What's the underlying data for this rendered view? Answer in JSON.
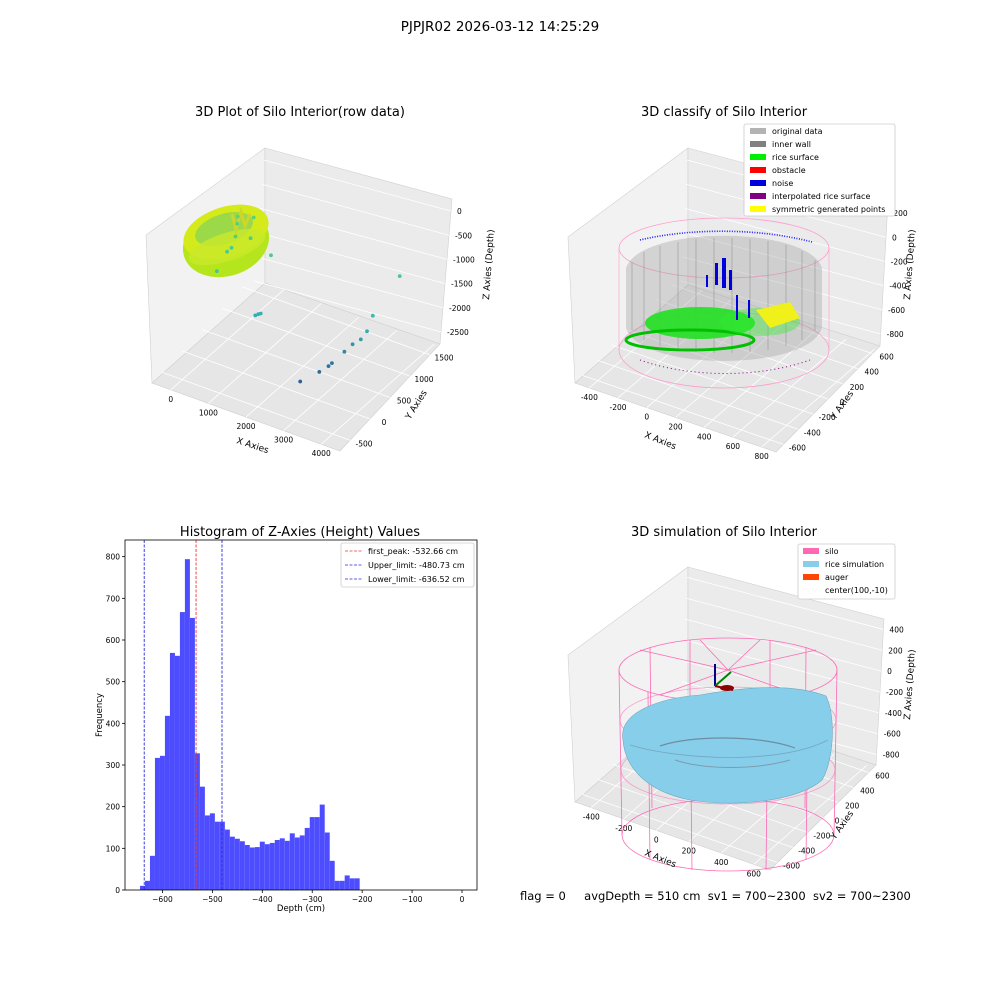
{
  "suptitle": "PJPJR02 2026-03-12 14:25:29",
  "footer": {
    "flag": "flag = 0",
    "avgdepth": "avgDepth = 510 cm",
    "sv1": "sv1 = 700~2300",
    "sv2": "sv2 = 700~2300"
  },
  "colors": {
    "hist_bar": "#4d4dff",
    "first_peak": "#e83a3a",
    "limits": "#2b2bd6",
    "silo": "#ff69b4",
    "rice_simulation": "#87ceeb",
    "auger": "#ff4500",
    "original_data": "#b3b3b3",
    "inner_wall": "#808080",
    "rice_surface": "#00ee00",
    "obstacle": "#ff0000",
    "noise": "#0000dd",
    "interpolated": "#800080",
    "symmetric": "#ffff00"
  },
  "chart_data": [
    {
      "type": "scatter",
      "subtype": "3d",
      "title": "3D Plot of Silo Interior(row data)",
      "xlabel": "X Axies",
      "ylabel": "Y Axies",
      "zlabel": "Z Axies (Depth)",
      "xticks": [
        "0",
        "1000",
        "2000",
        "3000",
        "4000"
      ],
      "yticks": [
        "-500",
        "0",
        "500",
        "1000",
        "1500"
      ],
      "zticks": [
        "0",
        "-500",
        "-1000",
        "-1500",
        "-2000",
        "-2500"
      ],
      "xlim": [
        -500,
        4200
      ],
      "ylim": [
        -700,
        1600
      ],
      "zlim": [
        -2900,
        100
      ],
      "outlier_points": [
        {
          "x": 450,
          "y": 380,
          "z": -200
        },
        {
          "x": 700,
          "y": 500,
          "z": -250
        },
        {
          "x": 380,
          "y": 420,
          "z": -400
        },
        {
          "x": 350,
          "y": 400,
          "z": -650
        },
        {
          "x": 600,
          "y": 500,
          "z": -700
        },
        {
          "x": 1100,
          "y": 500,
          "z": -900
        },
        {
          "x": 250,
          "y": 300,
          "z": -900
        },
        {
          "x": 300,
          "y": 350,
          "z": -850
        },
        {
          "x": 100,
          "y": 200,
          "z": -1250
        },
        {
          "x": 900,
          "y": 300,
          "z": -2000
        },
        {
          "x": 950,
          "y": 320,
          "z": -1980
        },
        {
          "x": 1000,
          "y": 330,
          "z": -1960
        },
        {
          "x": 3700,
          "y": 1000,
          "z": -1000
        },
        {
          "x": 3300,
          "y": 750,
          "z": -1700
        },
        {
          "x": 3200,
          "y": 700,
          "z": -2000
        },
        {
          "x": 3100,
          "y": 650,
          "z": -2150
        },
        {
          "x": 2950,
          "y": 600,
          "z": -2250
        },
        {
          "x": 2800,
          "y": 550,
          "z": -2400
        },
        {
          "x": 2600,
          "y": 450,
          "z": -2600
        },
        {
          "x": 2550,
          "y": 420,
          "z": -2650
        },
        {
          "x": 2400,
          "y": 350,
          "z": -2750
        },
        {
          "x": 2100,
          "y": 200,
          "z": -2900
        }
      ]
    },
    {
      "type": "scatter",
      "subtype": "3d",
      "title": "3D classify of Silo Interior",
      "xlabel": "X Axies",
      "ylabel": "Y Axies",
      "zlabel": "Z Axies (Depth)",
      "xticks": [
        "-400",
        "-200",
        "0",
        "200",
        "400",
        "600",
        "800"
      ],
      "yticks": [
        "-600",
        "-400",
        "-200",
        "0",
        "200",
        "400",
        "600"
      ],
      "zticks": [
        "200",
        "0",
        "-200",
        "-400",
        "-600",
        "-800"
      ],
      "legend": [
        "original data",
        "inner wall",
        "rice surface",
        "obstacle",
        "noise",
        "interpolated rice surface",
        "symmetric generated points"
      ],
      "legend_position": "upper right"
    },
    {
      "type": "bar",
      "title": "Histogram of Z-Axies (Height) Values",
      "xlabel": "Depth (cm)",
      "ylabel": "Frequency",
      "xlim": [
        -675,
        30
      ],
      "ylim": [
        0,
        840
      ],
      "xticks": [
        -600,
        -500,
        -400,
        -300,
        -200,
        -100,
        0
      ],
      "yticks": [
        0,
        100,
        200,
        300,
        400,
        500,
        600,
        700,
        800
      ],
      "bin_start": -645,
      "bin_width": 10,
      "values": [
        10,
        22,
        82,
        317,
        322,
        418,
        569,
        562,
        667,
        794,
        653,
        328,
        248,
        179,
        184,
        164,
        164,
        145,
        128,
        123,
        117,
        108,
        102,
        103,
        116,
        110,
        113,
        120,
        124,
        118,
        136,
        126,
        131,
        149,
        175,
        175,
        205,
        138,
        70,
        22,
        22,
        35,
        28,
        28
      ],
      "lines": [
        {
          "label": "first_peak: -532.66 cm",
          "x": -532.66,
          "color": "#e83a3a"
        },
        {
          "label": "Upper_limit: -480.73 cm",
          "x": -480.73,
          "color": "#2b2bd6"
        },
        {
          "label": "Lower_limit: -636.52 cm",
          "x": -636.52,
          "color": "#2b2bd6"
        }
      ],
      "legend_position": "upper right"
    },
    {
      "type": "surface",
      "subtype": "3d",
      "title": "3D simulation of Silo Interior",
      "xlabel": "X Axies",
      "ylabel": "Y Axies",
      "zlabel": "Z Axies (Depth)",
      "xticks": [
        "-400",
        "-200",
        "0",
        "200",
        "400",
        "600"
      ],
      "yticks": [
        "-600",
        "-400",
        "-200",
        "0",
        "200",
        "400",
        "600"
      ],
      "zticks": [
        "400",
        "200",
        "0",
        "-200",
        "-400",
        "-600",
        "-800"
      ],
      "legend": [
        "silo",
        "rice simulation",
        "auger",
        "center(100,-10)"
      ],
      "legend_position": "upper right"
    }
  ]
}
